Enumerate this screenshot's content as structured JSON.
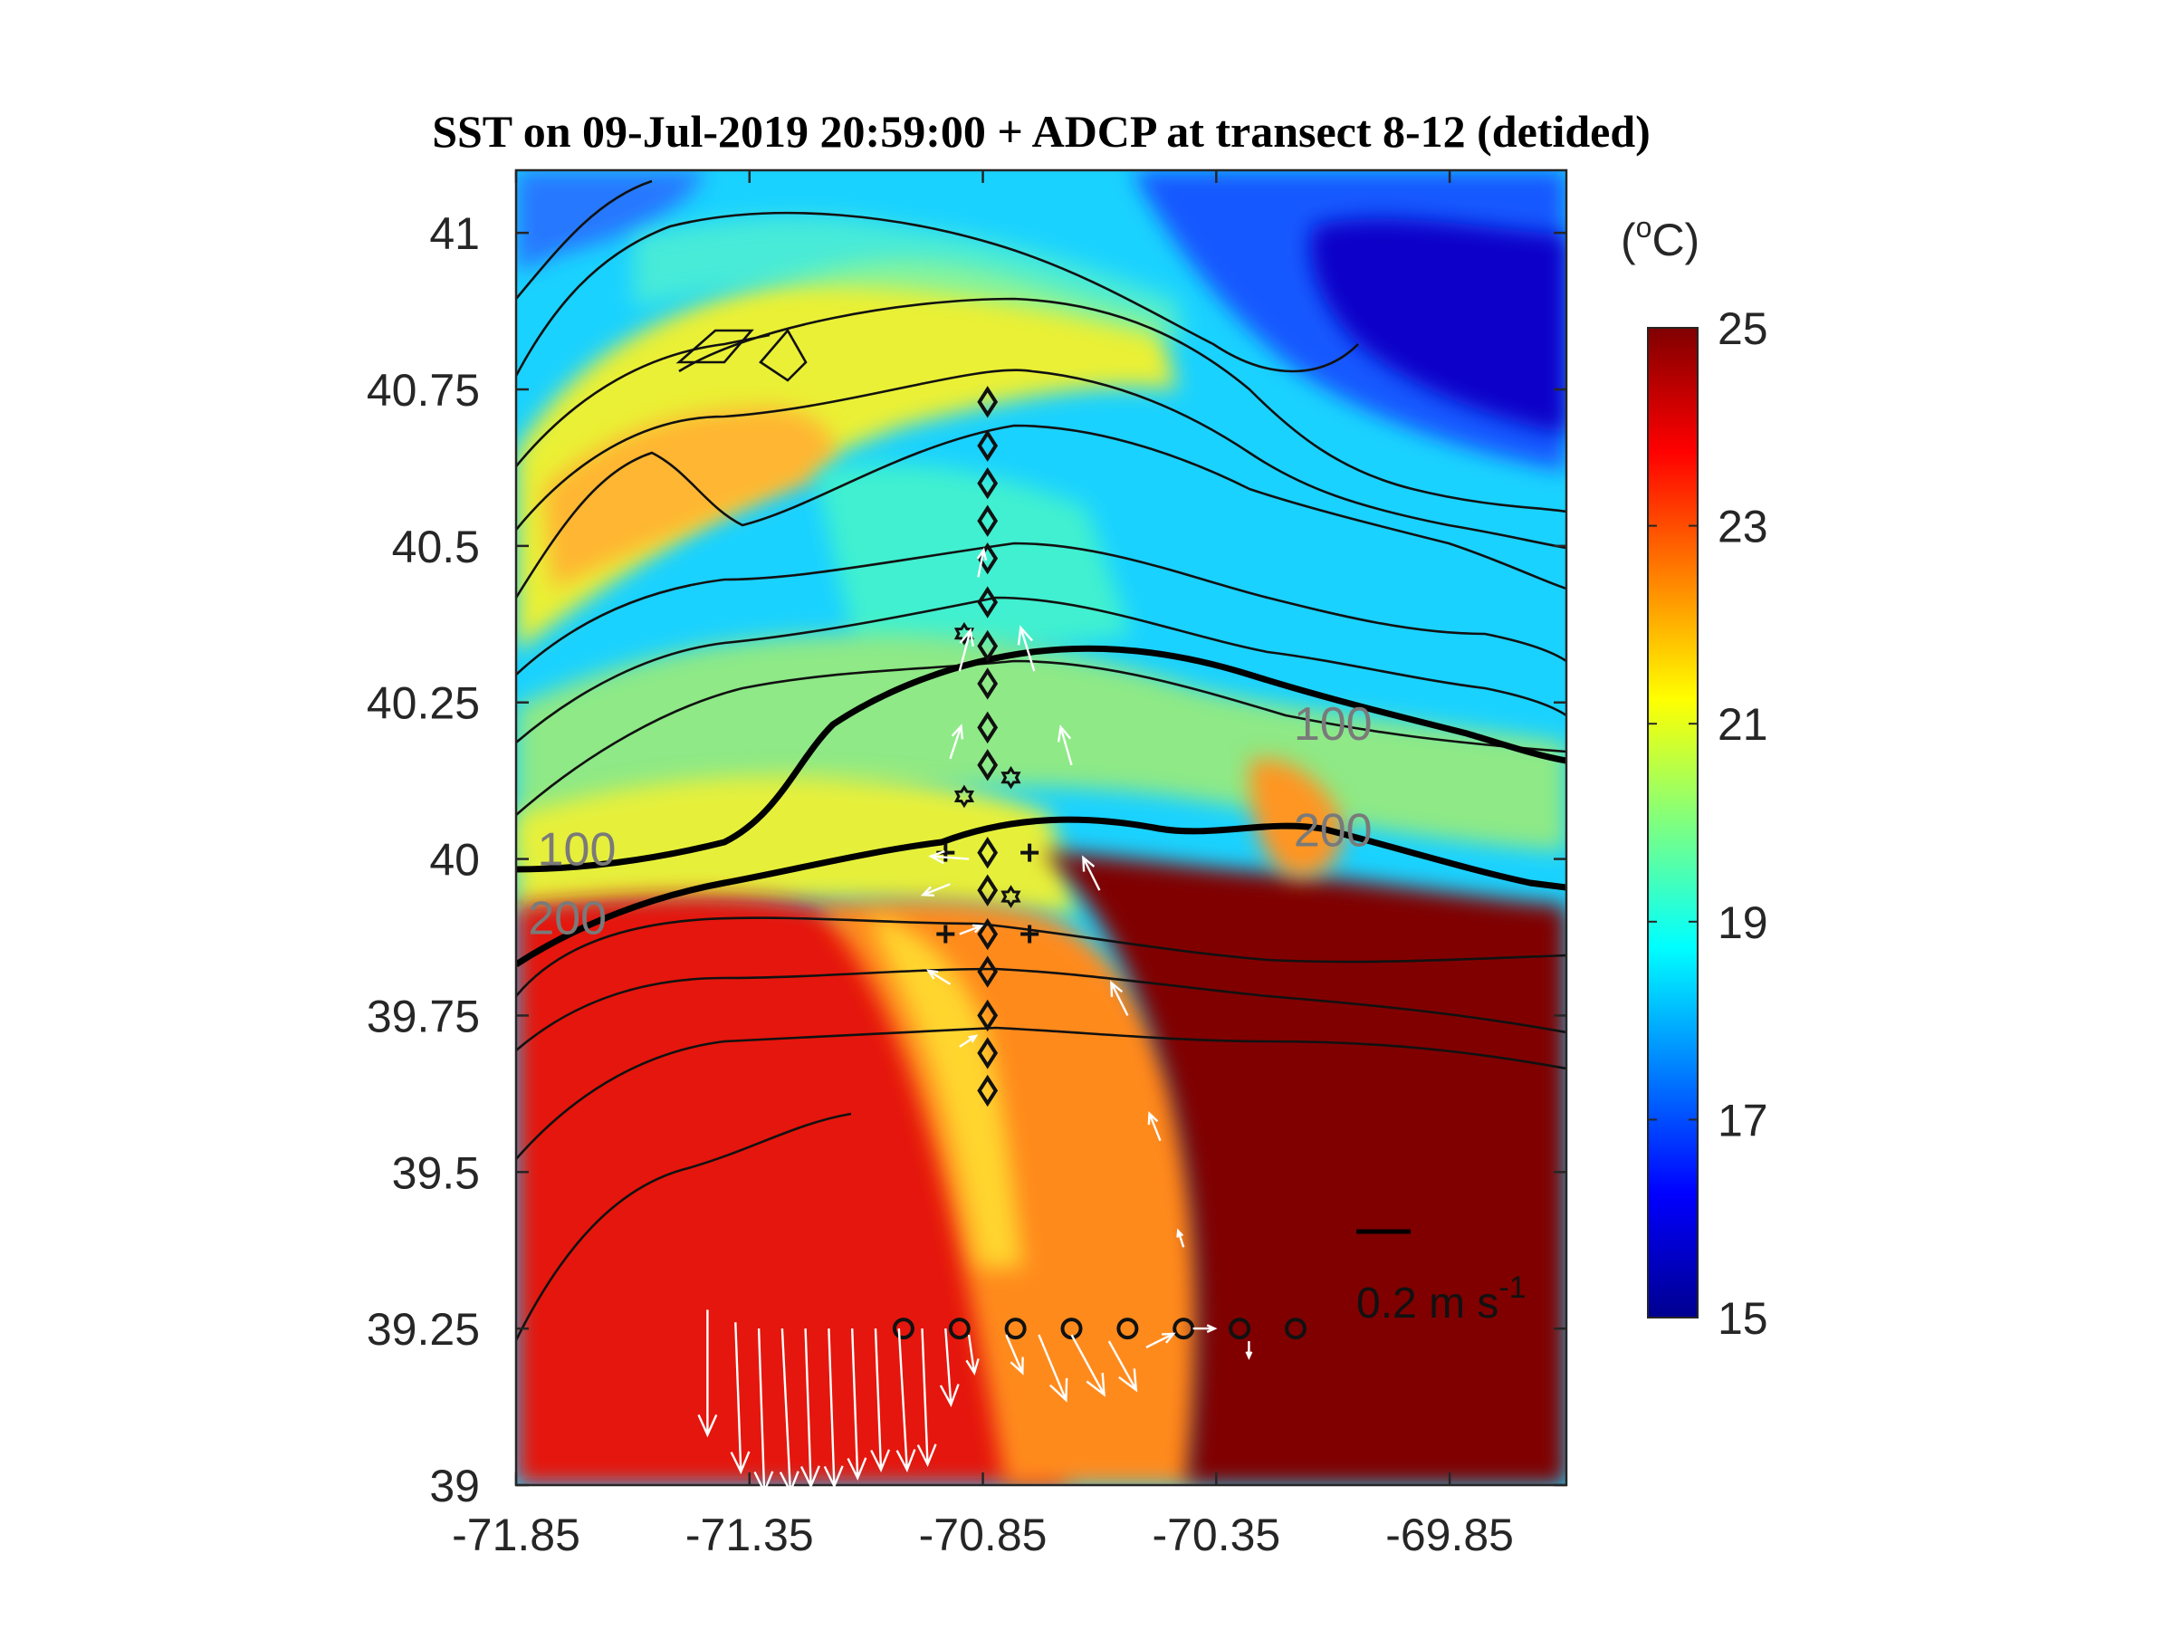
{
  "chart_data": {
    "type": "heatmap",
    "title": "SST on 09-Jul-2019 20:59:00 + ADCP at transect 8-12 (detided)",
    "xlim": [
      -71.85,
      -69.6
    ],
    "ylim": [
      39.0,
      41.1
    ],
    "x_ticks": [
      "-71.85",
      "-71.35",
      "-70.85",
      "-70.35",
      "-69.85"
    ],
    "y_ticks": [
      "39",
      "39.25",
      "39.5",
      "39.75",
      "40",
      "40.25",
      "40.5",
      "40.75",
      "41"
    ],
    "colorbar": {
      "unit_label": "(",
      "unit_sup": "o",
      "unit_rest": "C)",
      "range": [
        15,
        25
      ],
      "ticks": [
        "15",
        "17",
        "19",
        "21",
        "23",
        "25"
      ],
      "colormap": "jet"
    },
    "isobath_labels": [
      {
        "text": "100",
        "lon": -71.72,
        "lat": 39.99
      },
      {
        "text": "200",
        "lon": -71.74,
        "lat": 39.88
      },
      {
        "text": "100",
        "lon": -70.1,
        "lat": 40.19
      },
      {
        "text": "200",
        "lon": -70.1,
        "lat": 40.02
      }
    ],
    "scale_vector": {
      "label": "0.2 m s",
      "exponent": "-1",
      "value_m_s": 0.2
    },
    "vectors": [
      {
        "lon": -71.44,
        "lat": 39.28,
        "u": 0.0,
        "v": -0.46
      },
      {
        "lon": -71.38,
        "lat": 39.26,
        "u": 0.02,
        "v": -0.55
      },
      {
        "lon": -71.33,
        "lat": 39.25,
        "u": 0.02,
        "v": -0.6
      },
      {
        "lon": -71.28,
        "lat": 39.25,
        "u": 0.03,
        "v": -0.6
      },
      {
        "lon": -71.23,
        "lat": 39.25,
        "u": 0.02,
        "v": -0.58
      },
      {
        "lon": -71.18,
        "lat": 39.25,
        "u": 0.02,
        "v": -0.58
      },
      {
        "lon": -71.13,
        "lat": 39.25,
        "u": 0.02,
        "v": -0.55
      },
      {
        "lon": -71.08,
        "lat": 39.25,
        "u": 0.02,
        "v": -0.52
      },
      {
        "lon": -71.03,
        "lat": 39.25,
        "u": 0.03,
        "v": -0.52
      },
      {
        "lon": -70.98,
        "lat": 39.25,
        "u": 0.02,
        "v": -0.5
      },
      {
        "lon": -70.93,
        "lat": 39.25,
        "u": 0.02,
        "v": -0.28
      },
      {
        "lon": -70.88,
        "lat": 39.24,
        "u": 0.02,
        "v": -0.14
      },
      {
        "lon": -70.8,
        "lat": 39.24,
        "u": 0.06,
        "v": -0.14
      },
      {
        "lon": -70.73,
        "lat": 39.24,
        "u": 0.1,
        "v": -0.24
      },
      {
        "lon": -70.66,
        "lat": 39.24,
        "u": 0.12,
        "v": -0.22
      },
      {
        "lon": -70.58,
        "lat": 39.23,
        "u": 0.1,
        "v": -0.18
      },
      {
        "lon": -70.5,
        "lat": 39.22,
        "u": 0.1,
        "v": 0.05
      },
      {
        "lon": -70.4,
        "lat": 39.25,
        "u": 0.08,
        "v": 0.0
      },
      {
        "lon": -70.28,
        "lat": 39.23,
        "u": 0.0,
        "v": -0.06
      },
      {
        "lon": -70.9,
        "lat": 39.7,
        "u": 0.06,
        "v": 0.04
      },
      {
        "lon": -70.92,
        "lat": 39.8,
        "u": -0.08,
        "v": 0.05
      },
      {
        "lon": -70.9,
        "lat": 39.88,
        "u": 0.08,
        "v": 0.03
      },
      {
        "lon": -70.92,
        "lat": 39.96,
        "u": -0.1,
        "v": -0.04
      },
      {
        "lon": -70.88,
        "lat": 40.0,
        "u": -0.14,
        "v": 0.01
      },
      {
        "lon": -70.92,
        "lat": 40.16,
        "u": 0.04,
        "v": 0.12
      },
      {
        "lon": -70.9,
        "lat": 40.3,
        "u": 0.04,
        "v": 0.15
      },
      {
        "lon": -70.86,
        "lat": 40.45,
        "u": 0.02,
        "v": 0.1
      },
      {
        "lon": -70.74,
        "lat": 40.3,
        "u": -0.05,
        "v": 0.16
      },
      {
        "lon": -70.66,
        "lat": 40.15,
        "u": -0.04,
        "v": 0.14
      },
      {
        "lon": -70.6,
        "lat": 39.95,
        "u": -0.06,
        "v": 0.12
      },
      {
        "lon": -70.54,
        "lat": 39.75,
        "u": -0.06,
        "v": 0.12
      },
      {
        "lon": -70.47,
        "lat": 39.55,
        "u": -0.04,
        "v": 0.1
      },
      {
        "lon": -70.42,
        "lat": 39.38,
        "u": -0.02,
        "v": 0.06
      }
    ],
    "station_markers": [
      {
        "shape": "diamond",
        "lon": -70.84,
        "lat": 40.73
      },
      {
        "shape": "diamond",
        "lon": -70.84,
        "lat": 40.66
      },
      {
        "shape": "diamond",
        "lon": -70.84,
        "lat": 40.6
      },
      {
        "shape": "diamond",
        "lon": -70.84,
        "lat": 40.54
      },
      {
        "shape": "diamond",
        "lon": -70.84,
        "lat": 40.48
      },
      {
        "shape": "diamond",
        "lon": -70.84,
        "lat": 40.41
      },
      {
        "shape": "diamond",
        "lon": -70.84,
        "lat": 40.34
      },
      {
        "shape": "diamond",
        "lon": -70.84,
        "lat": 40.28
      },
      {
        "shape": "diamond",
        "lon": -70.84,
        "lat": 40.21
      },
      {
        "shape": "diamond",
        "lon": -70.84,
        "lat": 40.15
      },
      {
        "shape": "diamond",
        "lon": -70.84,
        "lat": 40.01
      },
      {
        "shape": "diamond",
        "lon": -70.84,
        "lat": 39.95
      },
      {
        "shape": "diamond",
        "lon": -70.84,
        "lat": 39.88
      },
      {
        "shape": "diamond",
        "lon": -70.84,
        "lat": 39.82
      },
      {
        "shape": "diamond",
        "lon": -70.84,
        "lat": 39.75
      },
      {
        "shape": "diamond",
        "lon": -70.84,
        "lat": 39.69
      },
      {
        "shape": "diamond",
        "lon": -70.84,
        "lat": 39.63
      },
      {
        "shape": "circle",
        "lon": -71.02,
        "lat": 39.25
      },
      {
        "shape": "circle",
        "lon": -70.9,
        "lat": 39.25
      },
      {
        "shape": "circle",
        "lon": -70.78,
        "lat": 39.25
      },
      {
        "shape": "circle",
        "lon": -70.66,
        "lat": 39.25
      },
      {
        "shape": "circle",
        "lon": -70.54,
        "lat": 39.25
      },
      {
        "shape": "circle",
        "lon": -70.42,
        "lat": 39.25
      },
      {
        "shape": "circle",
        "lon": -70.3,
        "lat": 39.25
      },
      {
        "shape": "circle",
        "lon": -70.18,
        "lat": 39.25
      },
      {
        "shape": "plus",
        "lon": -70.93,
        "lat": 40.01
      },
      {
        "shape": "plus",
        "lon": -70.75,
        "lat": 40.01
      },
      {
        "shape": "plus",
        "lon": -70.93,
        "lat": 39.88
      },
      {
        "shape": "plus",
        "lon": -70.75,
        "lat": 39.88
      },
      {
        "shape": "hexagram",
        "lon": -70.89,
        "lat": 40.36
      },
      {
        "shape": "hexagram",
        "lon": -70.79,
        "lat": 40.13
      },
      {
        "shape": "hexagram",
        "lon": -70.89,
        "lat": 40.1
      },
      {
        "shape": "hexagram",
        "lon": -70.79,
        "lat": 39.94
      }
    ]
  }
}
